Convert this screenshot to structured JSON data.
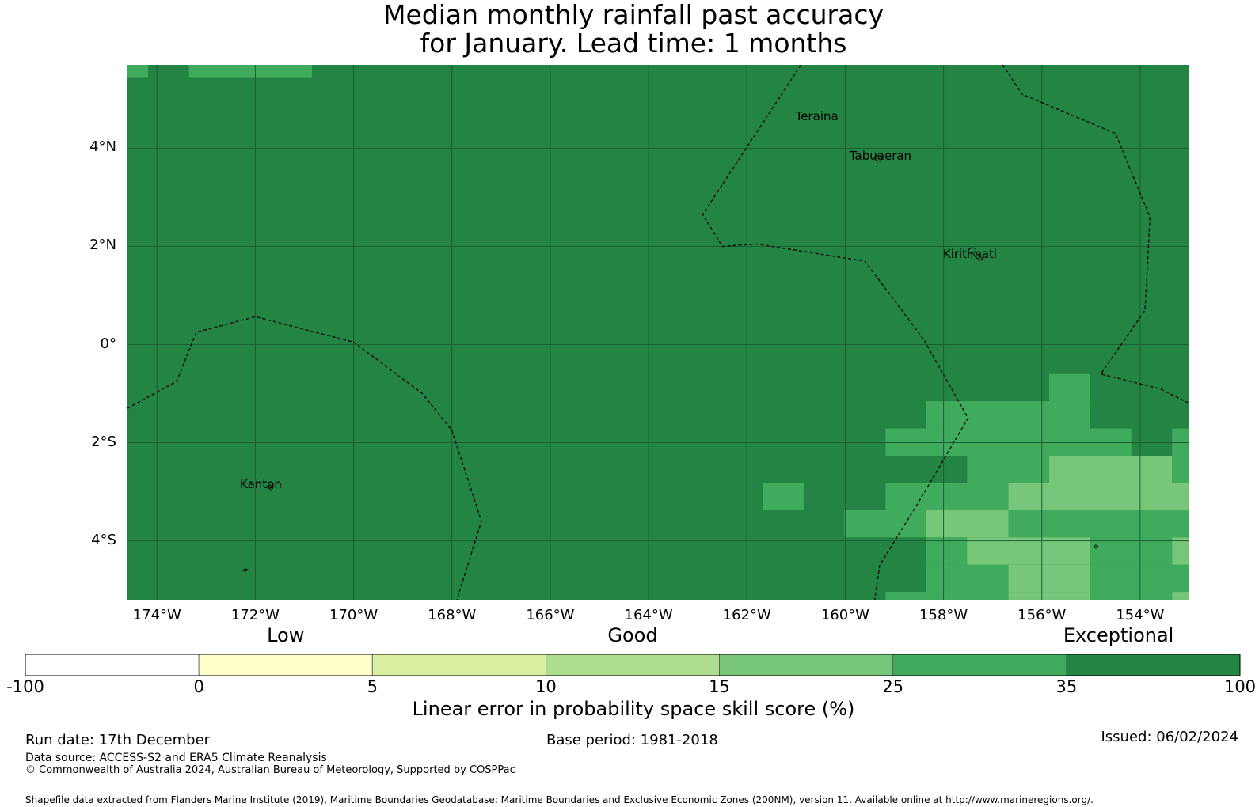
{
  "title": {
    "line1": "Median monthly rainfall past accuracy",
    "line2": "for January. Lead time: 1 months"
  },
  "map": {
    "lon_range": [
      -174.6,
      -153.0
    ],
    "lat_range": [
      -5.2,
      5.7
    ],
    "lat_ticks": [
      {
        "value": 4,
        "label": "4°N"
      },
      {
        "value": 2,
        "label": "2°N"
      },
      {
        "value": 0,
        "label": "0°"
      },
      {
        "value": -2,
        "label": "2°S"
      },
      {
        "value": -4,
        "label": "4°S"
      }
    ],
    "lon_ticks": [
      {
        "value": -174,
        "label": "174°W"
      },
      {
        "value": -172,
        "label": "172°W"
      },
      {
        "value": -170,
        "label": "170°W"
      },
      {
        "value": -168,
        "label": "168°W"
      },
      {
        "value": -166,
        "label": "166°W"
      },
      {
        "value": -164,
        "label": "164°W"
      },
      {
        "value": -162,
        "label": "162°W"
      },
      {
        "value": -160,
        "label": "160°W"
      },
      {
        "value": -158,
        "label": "158°W"
      },
      {
        "value": -156,
        "label": "156°W"
      },
      {
        "value": -154,
        "label": "154°W"
      }
    ],
    "places": [
      {
        "name": "Teraina",
        "display": "Teraina",
        "lon": -160.4,
        "lat": 4.65
      },
      {
        "name": "Tabuaeran",
        "display": "Tabuaeran",
        "lon": -159.3,
        "lat": 3.85
      },
      {
        "name": "Kiritimati",
        "display": "Kiritimati",
        "lon": -157.4,
        "lat": 1.85
      },
      {
        "name": "Kanton",
        "display": "Kanton",
        "lon": -171.7,
        "lat": -2.85
      }
    ],
    "base_color": "#238443",
    "cell_size_deg": [
      0.833,
      0.555
    ],
    "skill_cells": [
      {
        "lon": -174.6,
        "lat": 5.7,
        "w": 0.42,
        "h": 0.25,
        "color": "#41ab5d"
      },
      {
        "lon": -173.35,
        "lat": 5.7,
        "w": 2.5,
        "h": 0.25,
        "color": "#41ab5d"
      },
      {
        "lon": -155.85,
        "lat": -0.6,
        "w": 0.833,
        "h": 0.555,
        "color": "#41ab5d"
      },
      {
        "lon": -158.35,
        "lat": -1.155,
        "w": 3.33,
        "h": 0.555,
        "color": "#41ab5d"
      },
      {
        "lon": -159.18,
        "lat": -1.71,
        "w": 5.0,
        "h": 0.555,
        "color": "#41ab5d"
      },
      {
        "lon": -153.35,
        "lat": -1.71,
        "w": 0.35,
        "h": 0.555,
        "color": "#41ab5d"
      },
      {
        "lon": -157.52,
        "lat": -2.265,
        "w": 1.67,
        "h": 0.555,
        "color": "#41ab5d"
      },
      {
        "lon": -155.85,
        "lat": -2.265,
        "w": 2.5,
        "h": 0.555,
        "color": "#78c679"
      },
      {
        "lon": -153.35,
        "lat": -2.265,
        "w": 0.35,
        "h": 0.555,
        "color": "#41ab5d"
      },
      {
        "lon": -161.68,
        "lat": -2.82,
        "w": 0.833,
        "h": 0.555,
        "color": "#41ab5d"
      },
      {
        "lon": -159.18,
        "lat": -2.82,
        "w": 2.5,
        "h": 0.555,
        "color": "#41ab5d"
      },
      {
        "lon": -156.68,
        "lat": -2.82,
        "w": 3.68,
        "h": 0.555,
        "color": "#78c679"
      },
      {
        "lon": -160.02,
        "lat": -3.375,
        "w": 1.67,
        "h": 0.555,
        "color": "#41ab5d"
      },
      {
        "lon": -158.35,
        "lat": -3.375,
        "w": 1.67,
        "h": 0.555,
        "color": "#78c679"
      },
      {
        "lon": -156.68,
        "lat": -3.375,
        "w": 3.68,
        "h": 0.555,
        "color": "#41ab5d"
      },
      {
        "lon": -158.35,
        "lat": -3.93,
        "w": 0.833,
        "h": 0.555,
        "color": "#41ab5d"
      },
      {
        "lon": -157.52,
        "lat": -3.93,
        "w": 2.5,
        "h": 0.555,
        "color": "#78c679"
      },
      {
        "lon": -155.02,
        "lat": -3.93,
        "w": 1.67,
        "h": 0.555,
        "color": "#41ab5d"
      },
      {
        "lon": -153.35,
        "lat": -3.93,
        "w": 0.35,
        "h": 0.555,
        "color": "#78c679"
      },
      {
        "lon": -158.35,
        "lat": -4.485,
        "w": 1.67,
        "h": 0.555,
        "color": "#41ab5d"
      },
      {
        "lon": -156.68,
        "lat": -4.485,
        "w": 1.67,
        "h": 0.555,
        "color": "#78c679"
      },
      {
        "lon": -155.02,
        "lat": -4.485,
        "w": 2.02,
        "h": 0.555,
        "color": "#41ab5d"
      },
      {
        "lon": -159.18,
        "lat": -5.04,
        "w": 0.833,
        "h": 0.16,
        "color": "#41ab5d"
      },
      {
        "lon": -158.35,
        "lat": -5.04,
        "w": 1.67,
        "h": 0.16,
        "color": "#41ab5d"
      },
      {
        "lon": -156.68,
        "lat": -5.04,
        "w": 1.67,
        "h": 0.16,
        "color": "#78c679"
      },
      {
        "lon": -155.02,
        "lat": -5.04,
        "w": 1.67,
        "h": 0.16,
        "color": "#41ab5d"
      },
      {
        "lon": -153.35,
        "lat": -5.04,
        "w": 0.35,
        "h": 0.16,
        "color": "#78c679"
      }
    ],
    "eez_boundaries": [
      [
        [
          -174.6,
          -1.3
        ],
        [
          -173.6,
          -0.75
        ],
        [
          -173.2,
          0.25
        ],
        [
          -172.0,
          0.57
        ],
        [
          -170.0,
          0.05
        ],
        [
          -168.6,
          -1.0
        ],
        [
          -168.0,
          -1.75
        ],
        [
          -167.4,
          -3.6
        ],
        [
          -167.9,
          -5.2
        ]
      ],
      [
        [
          -160.9,
          5.7
        ],
        [
          -162.9,
          2.65
        ],
        [
          -162.5,
          2.0
        ],
        [
          -161.8,
          2.05
        ],
        [
          -159.6,
          1.7
        ],
        [
          -158.4,
          0.1
        ],
        [
          -157.5,
          -1.5
        ],
        [
          -158.5,
          -3.2
        ],
        [
          -159.3,
          -4.5
        ],
        [
          -159.4,
          -5.2
        ]
      ],
      [
        [
          -156.8,
          5.7
        ],
        [
          -156.4,
          5.1
        ],
        [
          -154.5,
          4.3
        ],
        [
          -153.8,
          2.6
        ],
        [
          -153.9,
          0.7
        ],
        [
          -154.8,
          -0.6
        ],
        [
          -153.6,
          -0.9
        ],
        [
          -153.0,
          -1.2
        ]
      ]
    ]
  },
  "colorbar": {
    "categories": [
      {
        "label": "Low",
        "position": "0-5"
      },
      {
        "label": "Good",
        "position": "10-15"
      },
      {
        "label": "Exceptional",
        "position": "35-100"
      }
    ],
    "bins": [
      {
        "from": -100,
        "to": 0,
        "color": "#ffffff"
      },
      {
        "from": 0,
        "to": 5,
        "color": "#ffffcc"
      },
      {
        "from": 5,
        "to": 10,
        "color": "#d9f0a3"
      },
      {
        "from": 10,
        "to": 15,
        "color": "#addd8e"
      },
      {
        "from": 15,
        "to": 25,
        "color": "#78c679"
      },
      {
        "from": 25,
        "to": 35,
        "color": "#41ab5d"
      },
      {
        "from": 35,
        "to": 100,
        "color": "#238443"
      }
    ],
    "tick_labels": [
      "-100",
      "0",
      "5",
      "10",
      "15",
      "25",
      "35",
      "100"
    ],
    "label": "Linear error in probability space skill score (%)"
  },
  "footer": {
    "run_date": "Run date: 17th December",
    "base_period": "Base period: 1981-2018",
    "issued": "Issued: 06/02/2024",
    "data_source": "Data source: ACCESS-S2 and ERA5 Climate Reanalysis",
    "copyright": "© Commonwealth of Australia 2024, Australian Bureau of Meteorology, Supported by COSPPac",
    "shapefile": "Shapefile data extracted from Flanders Marine Institute (2019), Maritime Boundaries Geodatabase: Maritime Boundaries and Exclusive Economic Zones (200NM), version 11. Available online at http://www.marineregions.org/."
  }
}
